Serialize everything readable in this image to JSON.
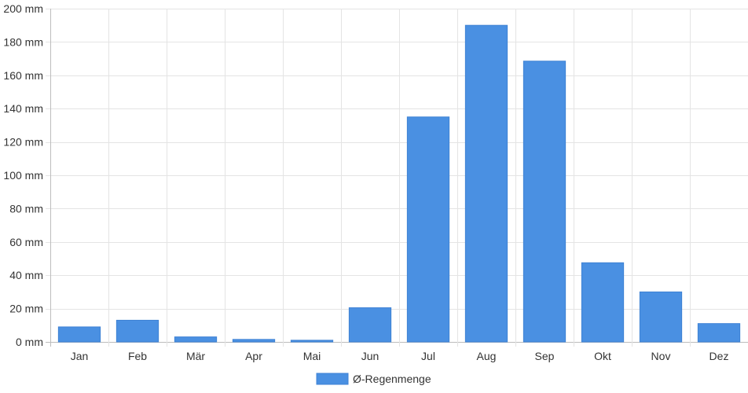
{
  "chart_data": {
    "type": "bar",
    "categories": [
      "Jan",
      "Feb",
      "Mär",
      "Apr",
      "Mai",
      "Jun",
      "Jul",
      "Aug",
      "Sep",
      "Okt",
      "Nov",
      "Dez"
    ],
    "series": [
      {
        "name": "Ø-Regenmenge",
        "color": "#4a90e2",
        "values": [
          9,
          13,
          3,
          1.5,
          1,
          20.5,
          135,
          190,
          168.5,
          47.5,
          30,
          11
        ]
      }
    ],
    "ylim": [
      0,
      200
    ],
    "yticks": [
      0,
      20,
      40,
      60,
      80,
      100,
      120,
      140,
      160,
      180,
      200
    ],
    "y_tick_suffix": " mm",
    "grid": true,
    "legend_position": "bottom-center"
  }
}
